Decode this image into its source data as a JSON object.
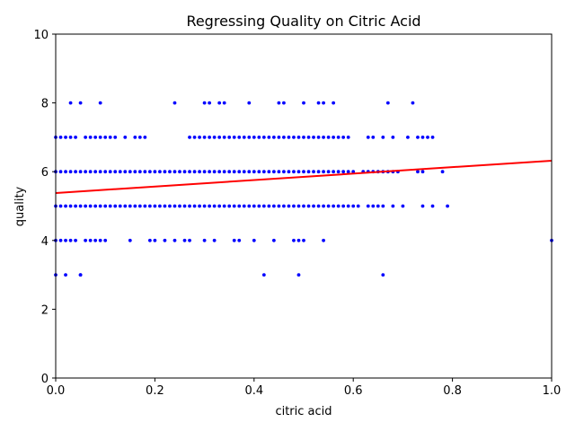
{
  "chart_data": {
    "type": "scatter",
    "title": "Regressing Quality on Citric Acid",
    "xlabel": "citric acid",
    "ylabel": "quality",
    "xlim": [
      0,
      1.0
    ],
    "ylim": [
      0,
      10
    ],
    "x_ticks": [
      "0.0",
      "0.2",
      "0.4",
      "0.6",
      "0.8",
      "1.0"
    ],
    "y_ticks": [
      "0",
      "2",
      "4",
      "6",
      "8",
      "10"
    ],
    "grid": false,
    "legend": "none",
    "colors": {
      "points": "#0000ff",
      "regression_line": "#ff0000",
      "axes": "#000000"
    },
    "regression_line": {
      "x": [
        0,
        1.0
      ],
      "y": [
        5.38,
        6.32
      ]
    },
    "series": [
      {
        "quality": 3,
        "x": [
          0.0,
          0.02,
          0.05,
          0.05,
          0.42,
          0.49,
          0.66
        ]
      },
      {
        "quality": 4,
        "x": [
          0.0,
          0.01,
          0.02,
          0.03,
          0.04,
          0.06,
          0.07,
          0.08,
          0.09,
          0.1,
          0.15,
          0.19,
          0.2,
          0.22,
          0.24,
          0.26,
          0.27,
          0.3,
          0.32,
          0.36,
          0.37,
          0.4,
          0.44,
          0.48,
          0.49,
          0.5,
          0.54,
          1.0
        ]
      },
      {
        "quality": 5,
        "x": [
          0.0,
          0.01,
          0.02,
          0.03,
          0.04,
          0.05,
          0.06,
          0.07,
          0.08,
          0.09,
          0.1,
          0.11,
          0.12,
          0.13,
          0.14,
          0.15,
          0.16,
          0.17,
          0.18,
          0.19,
          0.2,
          0.21,
          0.22,
          0.23,
          0.24,
          0.25,
          0.26,
          0.27,
          0.28,
          0.29,
          0.3,
          0.31,
          0.32,
          0.33,
          0.34,
          0.35,
          0.36,
          0.37,
          0.38,
          0.39,
          0.4,
          0.41,
          0.42,
          0.43,
          0.44,
          0.45,
          0.46,
          0.47,
          0.48,
          0.49,
          0.5,
          0.51,
          0.52,
          0.53,
          0.54,
          0.55,
          0.56,
          0.57,
          0.58,
          0.59,
          0.6,
          0.61,
          0.63,
          0.64,
          0.65,
          0.66,
          0.68,
          0.7,
          0.74,
          0.76,
          0.79
        ]
      },
      {
        "quality": 6,
        "x": [
          0.0,
          0.01,
          0.02,
          0.03,
          0.04,
          0.05,
          0.06,
          0.07,
          0.08,
          0.09,
          0.1,
          0.11,
          0.12,
          0.13,
          0.14,
          0.15,
          0.16,
          0.17,
          0.18,
          0.19,
          0.2,
          0.21,
          0.22,
          0.23,
          0.24,
          0.25,
          0.26,
          0.27,
          0.28,
          0.29,
          0.3,
          0.31,
          0.32,
          0.33,
          0.34,
          0.35,
          0.36,
          0.37,
          0.38,
          0.39,
          0.4,
          0.41,
          0.42,
          0.43,
          0.44,
          0.45,
          0.46,
          0.47,
          0.48,
          0.49,
          0.5,
          0.51,
          0.52,
          0.53,
          0.54,
          0.55,
          0.56,
          0.57,
          0.58,
          0.59,
          0.6,
          0.62,
          0.63,
          0.64,
          0.65,
          0.66,
          0.67,
          0.68,
          0.69,
          0.73,
          0.74,
          0.78
        ]
      },
      {
        "quality": 7,
        "x": [
          0.0,
          0.01,
          0.02,
          0.03,
          0.04,
          0.06,
          0.07,
          0.08,
          0.09,
          0.1,
          0.11,
          0.12,
          0.14,
          0.16,
          0.17,
          0.18,
          0.27,
          0.28,
          0.29,
          0.3,
          0.31,
          0.32,
          0.33,
          0.34,
          0.35,
          0.36,
          0.37,
          0.38,
          0.39,
          0.4,
          0.41,
          0.42,
          0.43,
          0.44,
          0.45,
          0.46,
          0.47,
          0.48,
          0.49,
          0.5,
          0.51,
          0.52,
          0.53,
          0.54,
          0.55,
          0.56,
          0.57,
          0.58,
          0.59,
          0.63,
          0.64,
          0.66,
          0.68,
          0.71,
          0.73,
          0.74,
          0.75,
          0.76
        ]
      },
      {
        "quality": 8,
        "x": [
          0.03,
          0.05,
          0.09,
          0.24,
          0.3,
          0.31,
          0.33,
          0.34,
          0.39,
          0.45,
          0.46,
          0.5,
          0.53,
          0.54,
          0.56,
          0.67,
          0.72
        ]
      }
    ]
  }
}
